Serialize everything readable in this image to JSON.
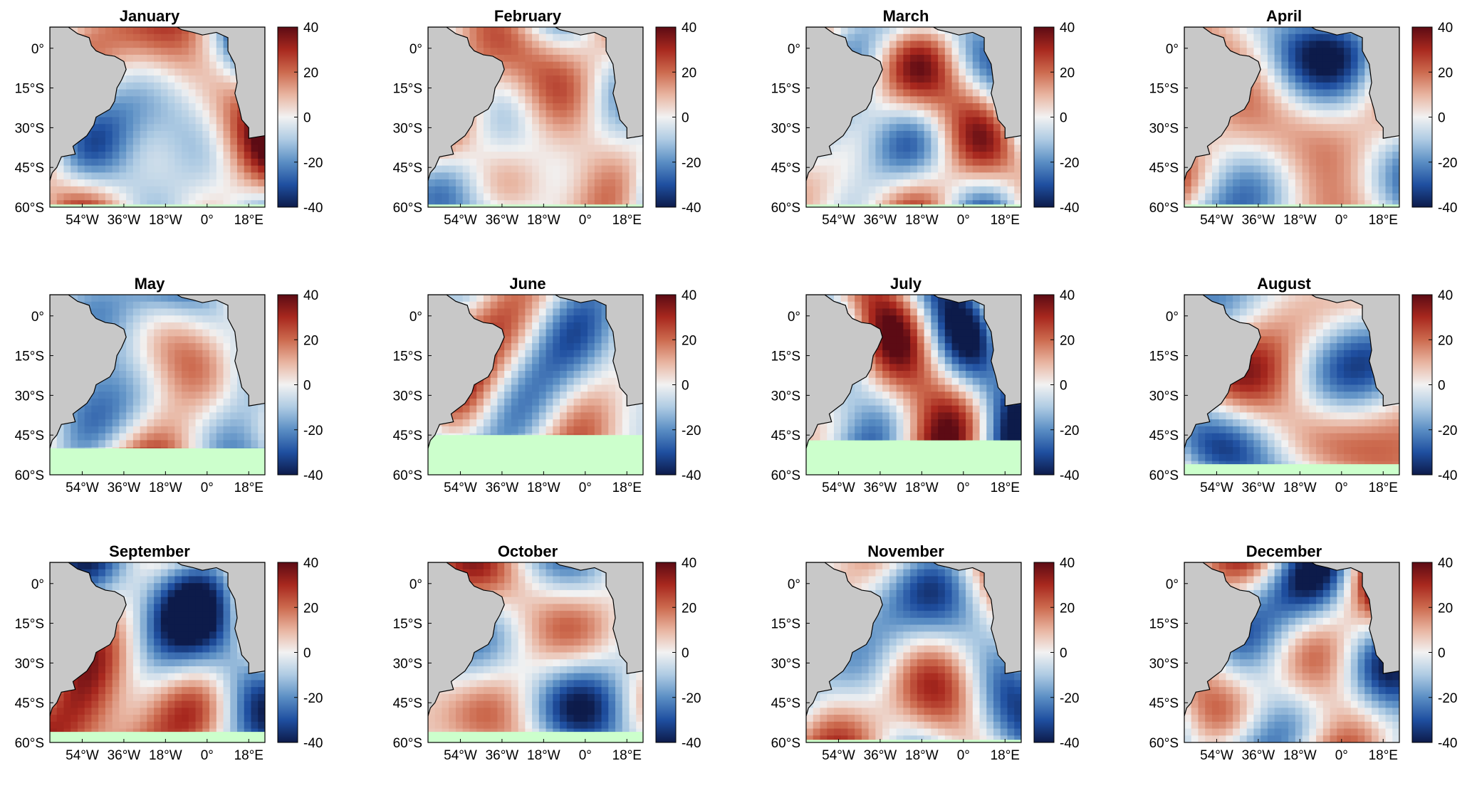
{
  "figure": {
    "months": [
      {
        "title": "January"
      },
      {
        "title": "February"
      },
      {
        "title": "March"
      },
      {
        "title": "April"
      },
      {
        "title": "May"
      },
      {
        "title": "June"
      },
      {
        "title": "July"
      },
      {
        "title": "August"
      },
      {
        "title": "September"
      },
      {
        "title": "October"
      },
      {
        "title": "November"
      },
      {
        "title": "December"
      }
    ],
    "colors": {
      "land": "#c8c8c8",
      "masked_region": "#ccffcc",
      "colormap": [
        "#0d1b4a",
        "#1f4fa0",
        "#5a8ec4",
        "#aecbe3",
        "#f2f2f2",
        "#e8b4a0",
        "#cc6a4e",
        "#a8281e",
        "#5c0b14"
      ]
    }
  },
  "chart_data": {
    "type": "heatmap",
    "panel_count": 12,
    "latitude_ticks": [
      "0°",
      "15°S",
      "30°S",
      "45°S",
      "60°S"
    ],
    "longitude_ticks": [
      "54°W",
      "36°W",
      "18°W",
      "0°",
      "18°E"
    ],
    "lat_range": [
      -60,
      8
    ],
    "lon_range": [
      -68,
      25
    ],
    "colorbar": {
      "range": [
        -40,
        40
      ],
      "ticks": [
        "40",
        "20",
        "0",
        "-20",
        "-40"
      ]
    },
    "masked_south_of_lat": {
      "January": -59,
      "February": -59,
      "March": -59,
      "April": -59,
      "May": -50,
      "June": -45,
      "July": -47,
      "August": -56,
      "September": -56,
      "October": -56,
      "November": -59,
      "December": -60
    }
  }
}
